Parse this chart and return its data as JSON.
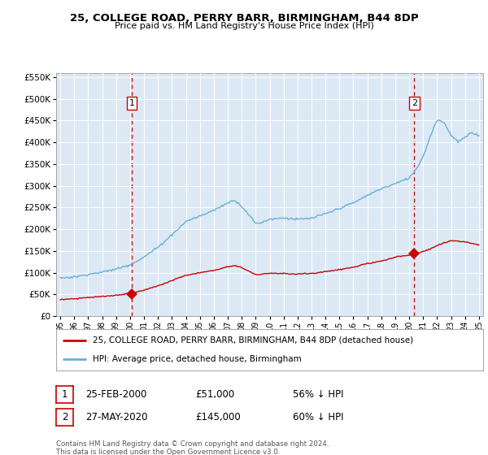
{
  "title": "25, COLLEGE ROAD, PERRY BARR, BIRMINGHAM, B44 8DP",
  "subtitle": "Price paid vs. HM Land Registry's House Price Index (HPI)",
  "legend_line1": "25, COLLEGE ROAD, PERRY BARR, BIRMINGHAM, B44 8DP (detached house)",
  "legend_line2": "HPI: Average price, detached house, Birmingham",
  "sale1_date": 2000.12,
  "sale1_price": 51000,
  "sale1_label": "1",
  "sale2_date": 2020.37,
  "sale2_price": 145000,
  "sale2_label": "2",
  "ylim": [
    0,
    560000
  ],
  "xlim": [
    1994.7,
    2025.3
  ],
  "background_color": "#dce9f5",
  "line_color_hpi": "#6baed6",
  "line_color_price": "#cc0000",
  "footer": "Contains HM Land Registry data © Crown copyright and database right 2024.\nThis data is licensed under the Open Government Licence v3.0.",
  "hpi_years": [
    1995.0,
    1995.08,
    1995.17,
    1995.25,
    1995.33,
    1995.42,
    1995.5,
    1995.58,
    1995.67,
    1995.75,
    1995.83,
    1995.92,
    1996.0,
    1996.08,
    1996.17,
    1996.25,
    1996.33,
    1996.42,
    1996.5,
    1996.58,
    1996.67,
    1996.75,
    1996.83,
    1996.92,
    1997.0,
    1997.08,
    1997.17,
    1997.25,
    1997.33,
    1997.42,
    1997.5,
    1997.58,
    1997.67,
    1997.75,
    1997.83,
    1997.92,
    1998.0,
    1998.08,
    1998.17,
    1998.25,
    1998.33,
    1998.42,
    1998.5,
    1998.58,
    1998.67,
    1998.75,
    1998.83,
    1998.92,
    1999.0,
    1999.08,
    1999.17,
    1999.25,
    1999.33,
    1999.42,
    1999.5,
    1999.58,
    1999.67,
    1999.75,
    1999.83,
    1999.92,
    2000.0,
    2000.08,
    2000.17,
    2000.25,
    2000.33,
    2000.42,
    2000.5,
    2000.58,
    2000.67,
    2000.75,
    2000.83,
    2000.92,
    2001.0,
    2001.08,
    2001.17,
    2001.25,
    2001.33,
    2001.42,
    2001.5,
    2001.58,
    2001.67,
    2001.75,
    2001.83,
    2001.92,
    2002.0,
    2002.08,
    2002.17,
    2002.25,
    2002.33,
    2002.42,
    2002.5,
    2002.58,
    2002.67,
    2002.75,
    2002.83,
    2002.92,
    2003.0,
    2003.08,
    2003.17,
    2003.25,
    2003.33,
    2003.42,
    2003.5,
    2003.58,
    2003.67,
    2003.75,
    2003.83,
    2003.92,
    2004.0,
    2004.08,
    2004.17,
    2004.25,
    2004.33,
    2004.42,
    2004.5,
    2004.58,
    2004.67,
    2004.75,
    2004.83,
    2004.92,
    2005.0,
    2005.08,
    2005.17,
    2005.25,
    2005.33,
    2005.42,
    2005.5,
    2005.58,
    2005.67,
    2005.75,
    2005.83,
    2005.92,
    2006.0,
    2006.08,
    2006.17,
    2006.25,
    2006.33,
    2006.42,
    2006.5,
    2006.58,
    2006.67,
    2006.75,
    2006.83,
    2006.92,
    2007.0,
    2007.08,
    2007.17,
    2007.25,
    2007.33,
    2007.42,
    2007.5,
    2007.58,
    2007.67,
    2007.75,
    2007.83,
    2007.92,
    2008.0,
    2008.08,
    2008.17,
    2008.25,
    2008.33,
    2008.42,
    2008.5,
    2008.58,
    2008.67,
    2008.75,
    2008.83,
    2008.92,
    2009.0,
    2009.08,
    2009.17,
    2009.25,
    2009.33,
    2009.42,
    2009.5,
    2009.58,
    2009.67,
    2009.75,
    2009.83,
    2009.92,
    2010.0,
    2010.08,
    2010.17,
    2010.25,
    2010.33,
    2010.42,
    2010.5,
    2010.58,
    2010.67,
    2010.75,
    2010.83,
    2010.92,
    2011.0,
    2011.08,
    2011.17,
    2011.25,
    2011.33,
    2011.42,
    2011.5,
    2011.58,
    2011.67,
    2011.75,
    2011.83,
    2011.92,
    2012.0,
    2012.08,
    2012.17,
    2012.25,
    2012.33,
    2012.42,
    2012.5,
    2012.58,
    2012.67,
    2012.75,
    2012.83,
    2012.92,
    2013.0,
    2013.08,
    2013.17,
    2013.25,
    2013.33,
    2013.42,
    2013.5,
    2013.58,
    2013.67,
    2013.75,
    2013.83,
    2013.92,
    2014.0,
    2014.08,
    2014.17,
    2014.25,
    2014.33,
    2014.42,
    2014.5,
    2014.58,
    2014.67,
    2014.75,
    2014.83,
    2014.92,
    2015.0,
    2015.08,
    2015.17,
    2015.25,
    2015.33,
    2015.42,
    2015.5,
    2015.58,
    2015.67,
    2015.75,
    2015.83,
    2015.92,
    2016.0,
    2016.08,
    2016.17,
    2016.25,
    2016.33,
    2016.42,
    2016.5,
    2016.58,
    2016.67,
    2016.75,
    2016.83,
    2016.92,
    2017.0,
    2017.08,
    2017.17,
    2017.25,
    2017.33,
    2017.42,
    2017.5,
    2017.58,
    2017.67,
    2017.75,
    2017.83,
    2017.92,
    2018.0,
    2018.08,
    2018.17,
    2018.25,
    2018.33,
    2018.42,
    2018.5,
    2018.58,
    2018.67,
    2018.75,
    2018.83,
    2018.92,
    2019.0,
    2019.08,
    2019.17,
    2019.25,
    2019.33,
    2019.42,
    2019.5,
    2019.58,
    2019.67,
    2019.75,
    2019.83,
    2019.92,
    2020.0,
    2020.08,
    2020.17,
    2020.25,
    2020.33,
    2020.42,
    2020.5,
    2020.58,
    2020.67,
    2020.75,
    2020.83,
    2020.92,
    2021.0,
    2021.08,
    2021.17,
    2021.25,
    2021.33,
    2021.42,
    2021.5,
    2021.58,
    2021.67,
    2021.75,
    2021.83,
    2021.92,
    2022.0,
    2022.08,
    2022.17,
    2022.25,
    2022.33,
    2022.42,
    2022.5,
    2022.58,
    2022.67,
    2022.75,
    2022.83,
    2022.92,
    2023.0,
    2023.08,
    2023.17,
    2023.25,
    2023.33,
    2023.42,
    2023.5,
    2023.58,
    2023.67,
    2023.75,
    2023.83,
    2023.92,
    2024.0,
    2024.08,
    2024.17,
    2024.25,
    2024.33,
    2024.42,
    2024.5,
    2024.58,
    2024.67,
    2024.75,
    2024.83,
    2024.92,
    2025.0
  ]
}
